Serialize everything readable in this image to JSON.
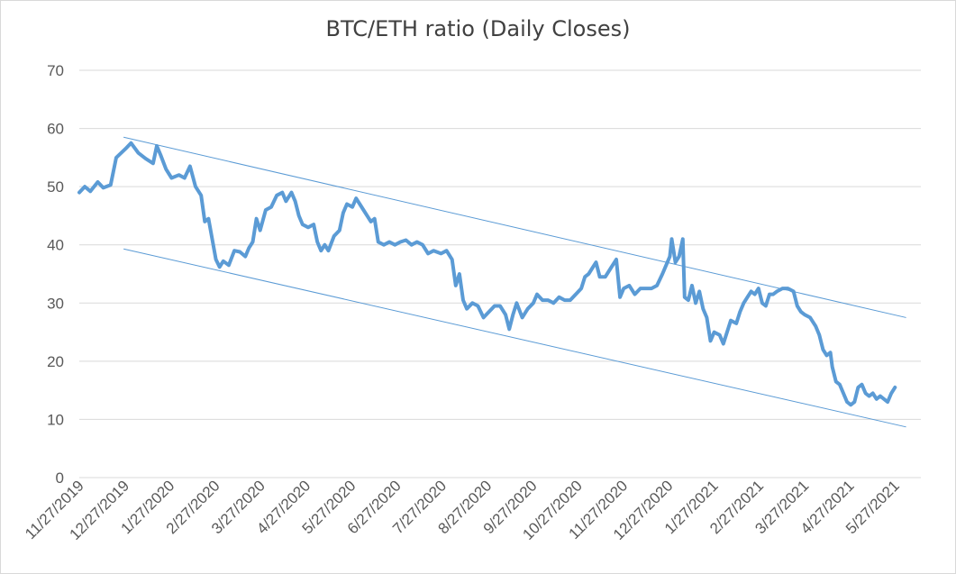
{
  "chart_data": {
    "type": "line",
    "title": "BTC/ETH ratio (Daily Closes)",
    "xlabel": "",
    "ylabel": "",
    "ylim": [
      0,
      70
    ],
    "yticks": [
      "0",
      "10",
      "20",
      "30",
      "40",
      "50",
      "60",
      "70"
    ],
    "xticks": [
      "11/27/2019",
      "12/27/2019",
      "1/27/2020",
      "2/27/2020",
      "3/27/2020",
      "4/27/2020",
      "5/27/2020",
      "6/27/2020",
      "7/27/2020",
      "8/27/2020",
      "9/27/2020",
      "10/27/2020",
      "11/27/2020",
      "12/27/2020",
      "1/27/2021",
      "2/27/2021",
      "3/27/2021",
      "4/27/2021",
      "5/27/2021"
    ],
    "grid": true,
    "legend": "none",
    "series": [
      {
        "color": "#5b9bd5",
        "points": [
          [
            0,
            49.0
          ],
          [
            3,
            50.0
          ],
          [
            6,
            49.2
          ],
          [
            10,
            50.8
          ],
          [
            13,
            49.8
          ],
          [
            17,
            50.3
          ],
          [
            20,
            55.0
          ],
          [
            25,
            56.5
          ],
          [
            28,
            57.5
          ],
          [
            32,
            55.8
          ],
          [
            36,
            54.8
          ],
          [
            40,
            54.0
          ],
          [
            42,
            57.0
          ],
          [
            44,
            55.5
          ],
          [
            47,
            53.0
          ],
          [
            50,
            51.5
          ],
          [
            54,
            52.0
          ],
          [
            57,
            51.5
          ],
          [
            60,
            53.5
          ],
          [
            63,
            50.0
          ],
          [
            66,
            48.5
          ],
          [
            68,
            44.0
          ],
          [
            70,
            44.5
          ],
          [
            72,
            41.0
          ],
          [
            74,
            37.5
          ],
          [
            76,
            36.2
          ],
          [
            78,
            37.2
          ],
          [
            81,
            36.5
          ],
          [
            84,
            39.0
          ],
          [
            87,
            38.8
          ],
          [
            90,
            38.0
          ],
          [
            92,
            39.5
          ],
          [
            94,
            40.5
          ],
          [
            96,
            44.5
          ],
          [
            98,
            42.5
          ],
          [
            101,
            46.0
          ],
          [
            104,
            46.5
          ],
          [
            107,
            48.5
          ],
          [
            110,
            49.0
          ],
          [
            112,
            47.5
          ],
          [
            115,
            49.0
          ],
          [
            117,
            47.5
          ],
          [
            119,
            45.0
          ],
          [
            121,
            43.5
          ],
          [
            124,
            43.0
          ],
          [
            127,
            43.5
          ],
          [
            129,
            40.5
          ],
          [
            131,
            39.0
          ],
          [
            133,
            40.0
          ],
          [
            135,
            39.0
          ],
          [
            138,
            41.5
          ],
          [
            141,
            42.5
          ],
          [
            143,
            45.5
          ],
          [
            145,
            47.0
          ],
          [
            148,
            46.5
          ],
          [
            150,
            48.0
          ],
          [
            152,
            47.0
          ],
          [
            154,
            46.0
          ],
          [
            156,
            45.0
          ],
          [
            158,
            44.0
          ],
          [
            160,
            44.5
          ],
          [
            162,
            40.5
          ],
          [
            165,
            40.0
          ],
          [
            168,
            40.5
          ],
          [
            171,
            40.0
          ],
          [
            174,
            40.5
          ],
          [
            177,
            40.8
          ],
          [
            180,
            40.0
          ],
          [
            183,
            40.5
          ],
          [
            186,
            40.0
          ],
          [
            189,
            38.5
          ],
          [
            192,
            39.0
          ],
          [
            196,
            38.5
          ],
          [
            199,
            39.0
          ],
          [
            202,
            37.5
          ],
          [
            204,
            33.0
          ],
          [
            206,
            35.0
          ],
          [
            208,
            30.5
          ],
          [
            210,
            29.0
          ],
          [
            213,
            30.0
          ],
          [
            216,
            29.5
          ],
          [
            219,
            27.5
          ],
          [
            222,
            28.5
          ],
          [
            225,
            29.5
          ],
          [
            228,
            29.5
          ],
          [
            231,
            28.0
          ],
          [
            233,
            25.5
          ],
          [
            235,
            28.0
          ],
          [
            237,
            30.0
          ],
          [
            240,
            27.5
          ],
          [
            243,
            29.0
          ],
          [
            246,
            30.0
          ],
          [
            248,
            31.5
          ],
          [
            251,
            30.5
          ],
          [
            254,
            30.5
          ],
          [
            257,
            30.0
          ],
          [
            260,
            31.0
          ],
          [
            263,
            30.5
          ],
          [
            266,
            30.5
          ],
          [
            269,
            31.5
          ],
          [
            272,
            32.5
          ],
          [
            274,
            34.5
          ],
          [
            276,
            35.0
          ],
          [
            278,
            36.0
          ],
          [
            280,
            37.0
          ],
          [
            282,
            34.5
          ],
          [
            285,
            34.5
          ],
          [
            288,
            36.0
          ],
          [
            291,
            37.5
          ],
          [
            293,
            31.0
          ],
          [
            295,
            32.5
          ],
          [
            298,
            33.0
          ],
          [
            301,
            31.5
          ],
          [
            304,
            32.5
          ],
          [
            307,
            32.5
          ],
          [
            310,
            32.5
          ],
          [
            313,
            33.0
          ],
          [
            316,
            35.0
          ],
          [
            318,
            36.5
          ],
          [
            320,
            38.0
          ],
          [
            321,
            41.0
          ],
          [
            323,
            37.0
          ],
          [
            325,
            38.0
          ],
          [
            327,
            41.0
          ],
          [
            328,
            31.0
          ],
          [
            330,
            30.5
          ],
          [
            332,
            33.0
          ],
          [
            334,
            30.0
          ],
          [
            336,
            32.0
          ],
          [
            338,
            29.0
          ],
          [
            340,
            27.5
          ],
          [
            342,
            23.5
          ],
          [
            344,
            25.0
          ],
          [
            347,
            24.5
          ],
          [
            349,
            23.0
          ],
          [
            351,
            25.0
          ],
          [
            353,
            27.0
          ],
          [
            356,
            26.5
          ],
          [
            358,
            28.5
          ],
          [
            360,
            30.0
          ],
          [
            362,
            31.0
          ],
          [
            364,
            32.0
          ],
          [
            366,
            31.5
          ],
          [
            368,
            32.5
          ],
          [
            370,
            30.0
          ],
          [
            372,
            29.5
          ],
          [
            374,
            31.5
          ],
          [
            376,
            31.5
          ],
          [
            378,
            32.0
          ],
          [
            381,
            32.5
          ],
          [
            384,
            32.5
          ],
          [
            387,
            32.0
          ],
          [
            389,
            29.5
          ],
          [
            391,
            28.5
          ],
          [
            393,
            28.0
          ],
          [
            396,
            27.5
          ],
          [
            399,
            26.0
          ],
          [
            401,
            24.5
          ],
          [
            403,
            22.0
          ],
          [
            405,
            21.0
          ],
          [
            407,
            21.5
          ],
          [
            408,
            19.0
          ],
          [
            410,
            16.5
          ],
          [
            412,
            16.0
          ],
          [
            414,
            14.5
          ],
          [
            416,
            13.0
          ],
          [
            418,
            12.5
          ],
          [
            420,
            13.0
          ],
          [
            422,
            15.5
          ],
          [
            424,
            16.0
          ],
          [
            426,
            14.5
          ],
          [
            428,
            14.0
          ],
          [
            430,
            14.5
          ],
          [
            432,
            13.5
          ],
          [
            434,
            14.0
          ],
          [
            436,
            13.5
          ],
          [
            438,
            13.0
          ],
          [
            440,
            14.5
          ],
          [
            442,
            15.5
          ]
        ]
      }
    ],
    "trendlines": [
      {
        "color": "#5b9bd5",
        "points": [
          [
            24,
            58.5
          ],
          [
            448,
            27.5
          ]
        ]
      },
      {
        "color": "#5b9bd5",
        "points": [
          [
            24,
            39.3
          ],
          [
            448,
            8.7
          ]
        ]
      }
    ]
  }
}
